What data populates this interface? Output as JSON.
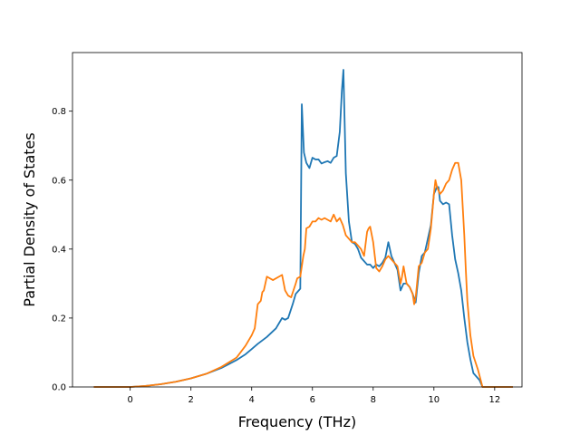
{
  "chart_data": {
    "type": "line",
    "title": "",
    "xlabel": "Frequency (THz)",
    "ylabel": "Partial Density of States",
    "xlim": [
      -1.9,
      12.9
    ],
    "ylim": [
      0.0,
      0.97
    ],
    "xticks": [
      0,
      2,
      4,
      6,
      8,
      10,
      12
    ],
    "xtick_labels": [
      "0",
      "2",
      "4",
      "6",
      "8",
      "10",
      "12"
    ],
    "yticks": [
      0.0,
      0.2,
      0.4,
      0.6,
      0.8
    ],
    "ytick_labels": [
      "0.0",
      "0.2",
      "0.4",
      "0.6",
      "0.8"
    ],
    "grid": false,
    "legend": "none",
    "series": [
      {
        "color": "#1f77b4",
        "x": [
          -1.2,
          0.0,
          0.5,
          1.0,
          1.5,
          2.0,
          2.5,
          3.0,
          3.5,
          3.8,
          4.0,
          4.2,
          4.5,
          4.8,
          4.9,
          5.0,
          5.1,
          5.2,
          5.35,
          5.45,
          5.55,
          5.6,
          5.65,
          5.72,
          5.8,
          5.9,
          6.0,
          6.1,
          6.2,
          6.3,
          6.4,
          6.5,
          6.6,
          6.7,
          6.8,
          6.9,
          6.97,
          7.02,
          7.1,
          7.2,
          7.3,
          7.4,
          7.5,
          7.6,
          7.7,
          7.8,
          7.9,
          8.0,
          8.1,
          8.2,
          8.3,
          8.4,
          8.5,
          8.6,
          8.7,
          8.8,
          8.9,
          9.0,
          9.1,
          9.2,
          9.3,
          9.4,
          9.5,
          9.6,
          9.7,
          9.8,
          9.9,
          10.0,
          10.1,
          10.15,
          10.2,
          10.3,
          10.4,
          10.5,
          10.6,
          10.7,
          10.8,
          10.9,
          11.0,
          11.1,
          11.2,
          11.3,
          11.5,
          11.6,
          12.0,
          12.6
        ],
        "y": [
          0.0,
          0.0,
          0.003,
          0.008,
          0.015,
          0.025,
          0.038,
          0.055,
          0.078,
          0.095,
          0.11,
          0.125,
          0.145,
          0.17,
          0.185,
          0.2,
          0.195,
          0.2,
          0.24,
          0.27,
          0.28,
          0.285,
          0.82,
          0.68,
          0.65,
          0.635,
          0.665,
          0.66,
          0.66,
          0.648,
          0.652,
          0.655,
          0.65,
          0.665,
          0.67,
          0.74,
          0.86,
          0.92,
          0.62,
          0.48,
          0.42,
          0.415,
          0.4,
          0.375,
          0.365,
          0.355,
          0.355,
          0.345,
          0.355,
          0.35,
          0.36,
          0.375,
          0.42,
          0.38,
          0.36,
          0.34,
          0.28,
          0.3,
          0.3,
          0.29,
          0.27,
          0.245,
          0.33,
          0.38,
          0.39,
          0.43,
          0.47,
          0.56,
          0.58,
          0.58,
          0.54,
          0.53,
          0.535,
          0.53,
          0.44,
          0.37,
          0.33,
          0.28,
          0.2,
          0.13,
          0.08,
          0.04,
          0.02,
          0.0,
          0.0,
          0.0
        ]
      },
      {
        "color": "#ff7f0e",
        "x": [
          -1.2,
          0.0,
          0.5,
          1.0,
          1.5,
          2.0,
          2.5,
          3.0,
          3.5,
          3.8,
          4.0,
          4.1,
          4.2,
          4.3,
          4.35,
          4.4,
          4.5,
          4.7,
          4.9,
          5.0,
          5.1,
          5.2,
          5.3,
          5.45,
          5.5,
          5.6,
          5.7,
          5.75,
          5.8,
          5.9,
          6.0,
          6.1,
          6.2,
          6.3,
          6.4,
          6.5,
          6.6,
          6.7,
          6.8,
          6.9,
          7.0,
          7.1,
          7.2,
          7.3,
          7.4,
          7.5,
          7.6,
          7.7,
          7.8,
          7.85,
          7.9,
          8.0,
          8.1,
          8.2,
          8.3,
          8.4,
          8.5,
          8.6,
          8.7,
          8.8,
          8.9,
          8.95,
          9.0,
          9.1,
          9.2,
          9.3,
          9.35,
          9.4,
          9.5,
          9.6,
          9.7,
          9.8,
          9.9,
          10.0,
          10.05,
          10.1,
          10.2,
          10.3,
          10.4,
          10.5,
          10.6,
          10.65,
          10.7,
          10.8,
          10.9,
          11.0,
          11.05,
          11.1,
          11.2,
          11.3,
          11.45,
          11.6,
          12.0,
          12.6
        ],
        "y": [
          0.0,
          0.0,
          0.003,
          0.008,
          0.015,
          0.025,
          0.038,
          0.058,
          0.085,
          0.12,
          0.15,
          0.17,
          0.24,
          0.25,
          0.275,
          0.28,
          0.32,
          0.31,
          0.32,
          0.325,
          0.28,
          0.265,
          0.26,
          0.3,
          0.315,
          0.32,
          0.38,
          0.4,
          0.46,
          0.465,
          0.48,
          0.48,
          0.49,
          0.485,
          0.49,
          0.485,
          0.48,
          0.5,
          0.48,
          0.49,
          0.47,
          0.44,
          0.43,
          0.42,
          0.42,
          0.41,
          0.4,
          0.38,
          0.45,
          0.46,
          0.465,
          0.42,
          0.345,
          0.335,
          0.35,
          0.37,
          0.38,
          0.37,
          0.36,
          0.35,
          0.3,
          0.32,
          0.35,
          0.3,
          0.29,
          0.27,
          0.24,
          0.26,
          0.35,
          0.36,
          0.39,
          0.4,
          0.46,
          0.56,
          0.6,
          0.58,
          0.56,
          0.57,
          0.59,
          0.6,
          0.63,
          0.64,
          0.65,
          0.65,
          0.6,
          0.44,
          0.34,
          0.25,
          0.15,
          0.09,
          0.05,
          0.0,
          0.0,
          0.0
        ]
      }
    ]
  }
}
